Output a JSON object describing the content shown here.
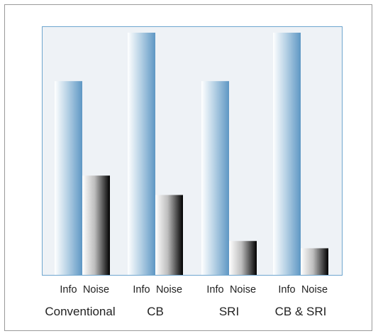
{
  "chart_data": {
    "type": "bar",
    "categories": [
      "Conventional",
      "CB",
      "SRI",
      "CB & SRI"
    ],
    "series": [
      {
        "name": "Info",
        "values": [
          80,
          100,
          80,
          100
        ],
        "color": "#6fa3cd"
      },
      {
        "name": "Noise",
        "values": [
          41,
          33,
          14,
          11
        ],
        "color": "#111111"
      }
    ],
    "ylim": [
      0,
      105
    ],
    "grid": false,
    "legend": "none"
  }
}
